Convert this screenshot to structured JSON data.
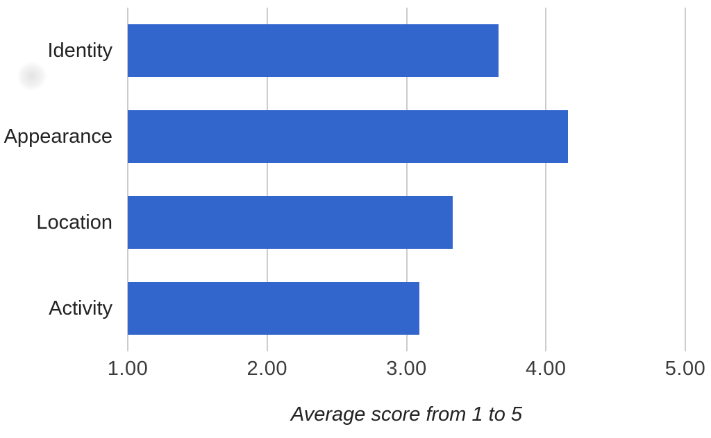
{
  "chart_data": {
    "type": "bar",
    "orientation": "horizontal",
    "title": "",
    "xlabel": "Average score from 1 to 5",
    "ylabel": "",
    "categories": [
      "Identity",
      "Appearance",
      "Location",
      "Activity"
    ],
    "values": [
      3.66,
      4.16,
      3.33,
      3.09
    ],
    "xlim": [
      1,
      5
    ],
    "xticks": [
      "1.00",
      "2.00",
      "3.00",
      "4.00",
      "5.00"
    ],
    "grid": true,
    "legend": "none",
    "colors": {
      "bar": "#3366cc",
      "gridline": "#cccccc",
      "tick": "#cccccc",
      "axis_text": "#3c3c3c",
      "category_text": "#222222",
      "title_text": "#222222",
      "background": "#ffffff"
    }
  }
}
